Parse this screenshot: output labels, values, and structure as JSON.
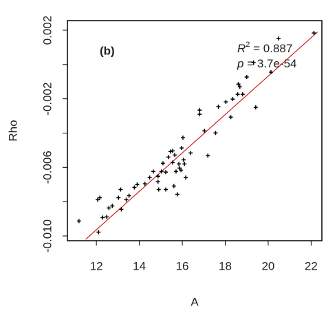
{
  "chart_data": {
    "type": "scatter",
    "xlabel": "A",
    "ylabel": "Rho",
    "annotations": {
      "panel": "(b)",
      "r2_label": "R",
      "r2_exp": "2",
      "r2_value": " = 0.887",
      "p_label": "p",
      "p_value": " = 3.7e-54"
    },
    "xlim": [
      10.65,
      22.5
    ],
    "xticks": [
      12,
      14,
      16,
      18,
      20,
      22
    ],
    "ylim": [
      -0.01028,
      0.00256
    ],
    "yticks": [
      {
        "value": 0.002,
        "label": "0.002"
      },
      {
        "value": 0,
        "label": null
      },
      {
        "value": -0.002,
        "label": "-0.002"
      },
      {
        "value": -0.004,
        "label": null
      },
      {
        "value": -0.006,
        "label": "-0.006"
      },
      {
        "value": -0.008,
        "label": null
      },
      {
        "value": -0.01,
        "label": "-0.010"
      }
    ],
    "color": "#000000",
    "fit": {
      "color": "#cc2222",
      "x": [
        11.5,
        22.3
      ],
      "y": [
        -0.0102,
        0.0019
      ]
    },
    "x": [
      11.19,
      12.06,
      12.16,
      12.1,
      12.29,
      12.48,
      12.58,
      12.74,
      13.03,
      13.13,
      13.16,
      13.39,
      13.52,
      13.77,
      13.9,
      14.26,
      14.48,
      14.65,
      14.87,
      14.9,
      14.87,
      15.03,
      15.1,
      15.23,
      15.23,
      15.35,
      15.45,
      15.55,
      15.55,
      15.65,
      15.61,
      15.71,
      15.77,
      15.84,
      15.87,
      15.94,
      15.97,
      16.03,
      16.06,
      16.1,
      16.16,
      16.39,
      16.81,
      16.81,
      17.03,
      17.19,
      17.55,
      17.68,
      18.03,
      18.26,
      18.35,
      18.58,
      18.61,
      18.68,
      18.81,
      19.0,
      19.32,
      19.42,
      20.13,
      20.48,
      22.13
    ],
    "y": [
      -0.00913,
      -0.00789,
      -0.00777,
      -0.00978,
      -0.00893,
      -0.00889,
      -0.00837,
      -0.00825,
      -0.00777,
      -0.00729,
      -0.00845,
      -0.00789,
      -0.00765,
      -0.00717,
      -0.007,
      -0.00696,
      -0.0066,
      -0.00624,
      -0.00652,
      -0.00729,
      -0.00684,
      -0.00624,
      -0.00576,
      -0.00628,
      -0.00729,
      -0.0054,
      -0.00508,
      -0.00504,
      -0.00572,
      -0.00528,
      -0.00709,
      -0.00624,
      -0.00757,
      -0.0058,
      -0.00604,
      -0.00616,
      -0.00487,
      -0.00427,
      -0.00556,
      -0.0058,
      -0.0066,
      -0.00516,
      -0.00266,
      -0.0029,
      -0.00387,
      -0.00532,
      -0.00399,
      -0.00246,
      -0.00218,
      -0.00307,
      -0.00202,
      -0.00174,
      -0.00114,
      -0.0013,
      -0.00174,
      -0.00073,
      0.00011,
      -0.0025,
      -0.00045,
      0.00152,
      0.00184
    ]
  }
}
